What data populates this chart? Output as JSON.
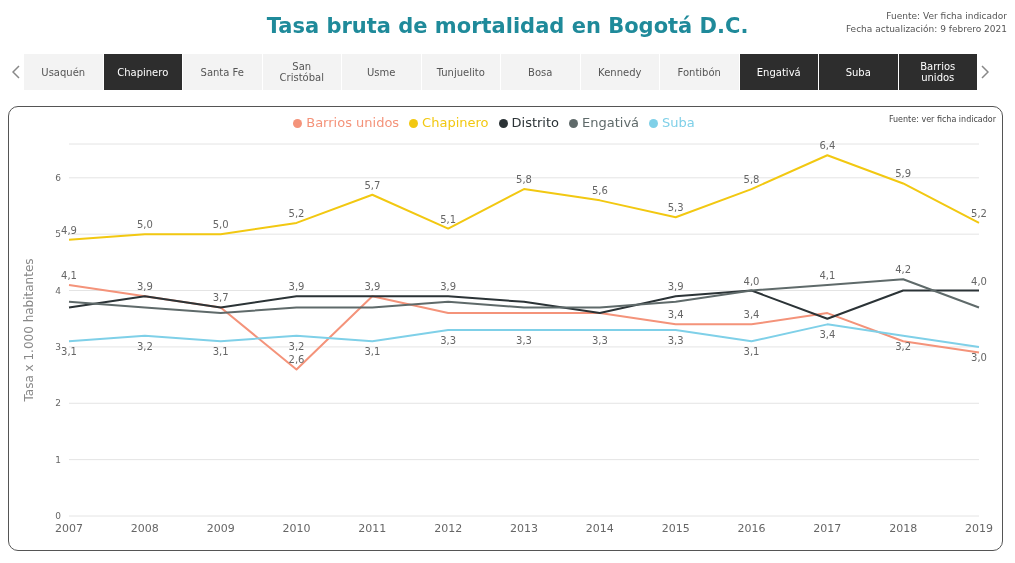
{
  "chart_data": [
    {
      "type": "other",
      "title": "Tasa bruta de mortalidad en Bogotá D.C.",
      "annotations": [
        "Fuente: Ver ficha indicador",
        "Fecha actualización: 9 febrero 2021"
      ]
    },
    {
      "type": "other",
      "annotations": [
        "Usaquén",
        "Chapinero",
        "Santa Fe",
        "San Cristóbal",
        "Usme",
        "Tunjuelito",
        "Bosa",
        "Kennedy",
        "Fontibón",
        "Engativá",
        "Suba",
        "Barrios unidos"
      ]
    },
    {
      "type": "line",
      "ylabel": "Tasa x 1.000 habitantes",
      "annotations": [
        "Fuente: ver ficha indicador"
      ],
      "categories": [
        "2007",
        "2008",
        "2009",
        "2010",
        "2011",
        "2012",
        "2013",
        "2014",
        "2015",
        "2016",
        "2017",
        "2018",
        "2019"
      ],
      "series": [
        {
          "name": "Barrios unidos",
          "color": "#f4937a",
          "values": [
            4.1,
            3.9,
            3.7,
            2.6,
            3.9,
            3.6,
            3.6,
            3.6,
            3.4,
            3.4,
            3.6,
            3.1,
            2.9
          ],
          "value_labels": [
            "4,1",
            null,
            null,
            "2,6",
            null,
            null,
            null,
            null,
            "3,4",
            "3,4",
            null,
            null,
            null
          ]
        },
        {
          "name": "Chapinero",
          "color": "#f2c811",
          "values": [
            4.9,
            5.0,
            5.0,
            5.2,
            5.7,
            5.1,
            5.8,
            5.6,
            5.3,
            5.8,
            6.4,
            5.9,
            5.2
          ],
          "value_labels": [
            "4,9",
            "5,0",
            "5,0",
            "5,2",
            "5,7",
            "5,1",
            "5,8",
            "5,6",
            "5,3",
            "5,8",
            "6,4",
            "5,9",
            "5,2"
          ]
        },
        {
          "name": "Distrito",
          "color": "#2b3336",
          "values": [
            3.7,
            3.9,
            3.7,
            3.9,
            3.9,
            3.9,
            3.8,
            3.6,
            3.9,
            4.0,
            3.5,
            4.0,
            4.0
          ],
          "value_labels": [
            null,
            "3,9",
            "3,7",
            "3,9",
            "3,9",
            "3,9",
            null,
            null,
            "3,9",
            "4,0",
            null,
            null,
            "4,0"
          ]
        },
        {
          "name": "Engativá",
          "color": "#5f6a6a",
          "values": [
            3.8,
            3.7,
            3.6,
            3.7,
            3.7,
            3.8,
            3.7,
            3.7,
            3.8,
            4.0,
            4.1,
            4.2,
            3.7
          ],
          "value_labels": [
            null,
            null,
            null,
            null,
            null,
            null,
            null,
            null,
            null,
            null,
            "4,1",
            "4,2",
            null
          ]
        },
        {
          "name": "Suba",
          "color": "#7fd0e8",
          "values": [
            3.1,
            3.2,
            3.1,
            3.2,
            3.1,
            3.3,
            3.3,
            3.3,
            3.3,
            3.1,
            3.4,
            3.2,
            3.0
          ],
          "value_labels": [
            "3,1",
            "3,2",
            "3,1",
            "3,2",
            "3,1",
            "3,3",
            "3,3",
            "3,3",
            "3,3",
            "3,1",
            "3,4",
            "3,2",
            "3,0"
          ]
        }
      ],
      "ylim": [
        0,
        6.6
      ],
      "yticks": [
        0,
        1,
        2,
        3,
        4,
        5,
        6
      ],
      "grid": "y",
      "legend": "top",
      "marker": "none",
      "line_style": "solid"
    }
  ]
}
